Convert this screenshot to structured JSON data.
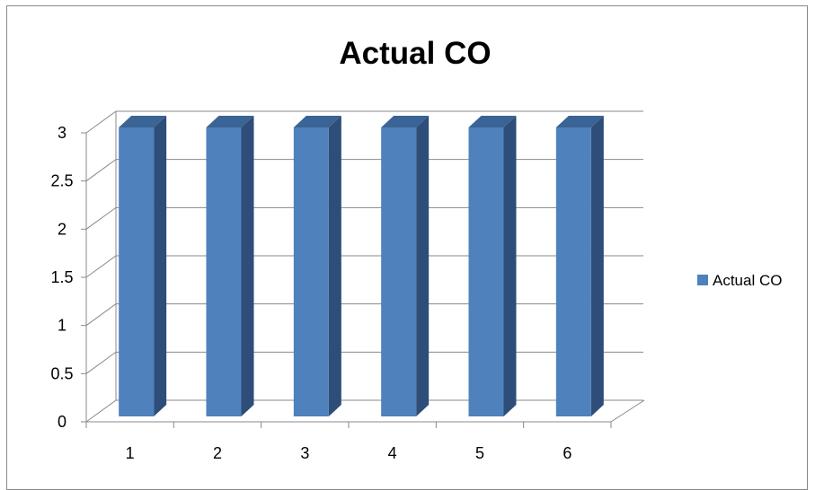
{
  "chart_data": {
    "type": "bar",
    "title": "Actual CO",
    "categories": [
      "1",
      "2",
      "3",
      "4",
      "5",
      "6"
    ],
    "series": [
      {
        "name": "Actual CO",
        "values": [
          3,
          3,
          3,
          3,
          3,
          3
        ]
      }
    ],
    "ylim": [
      0,
      3
    ],
    "yticks": [
      "0",
      "0.5",
      "1",
      "1.5",
      "2",
      "2.5",
      "3"
    ],
    "grid": true,
    "legend": "right",
    "colors": {
      "bar_front": "#4F81BD",
      "bar_side": "#2E4D78",
      "bar_top": "#3A6496"
    }
  }
}
